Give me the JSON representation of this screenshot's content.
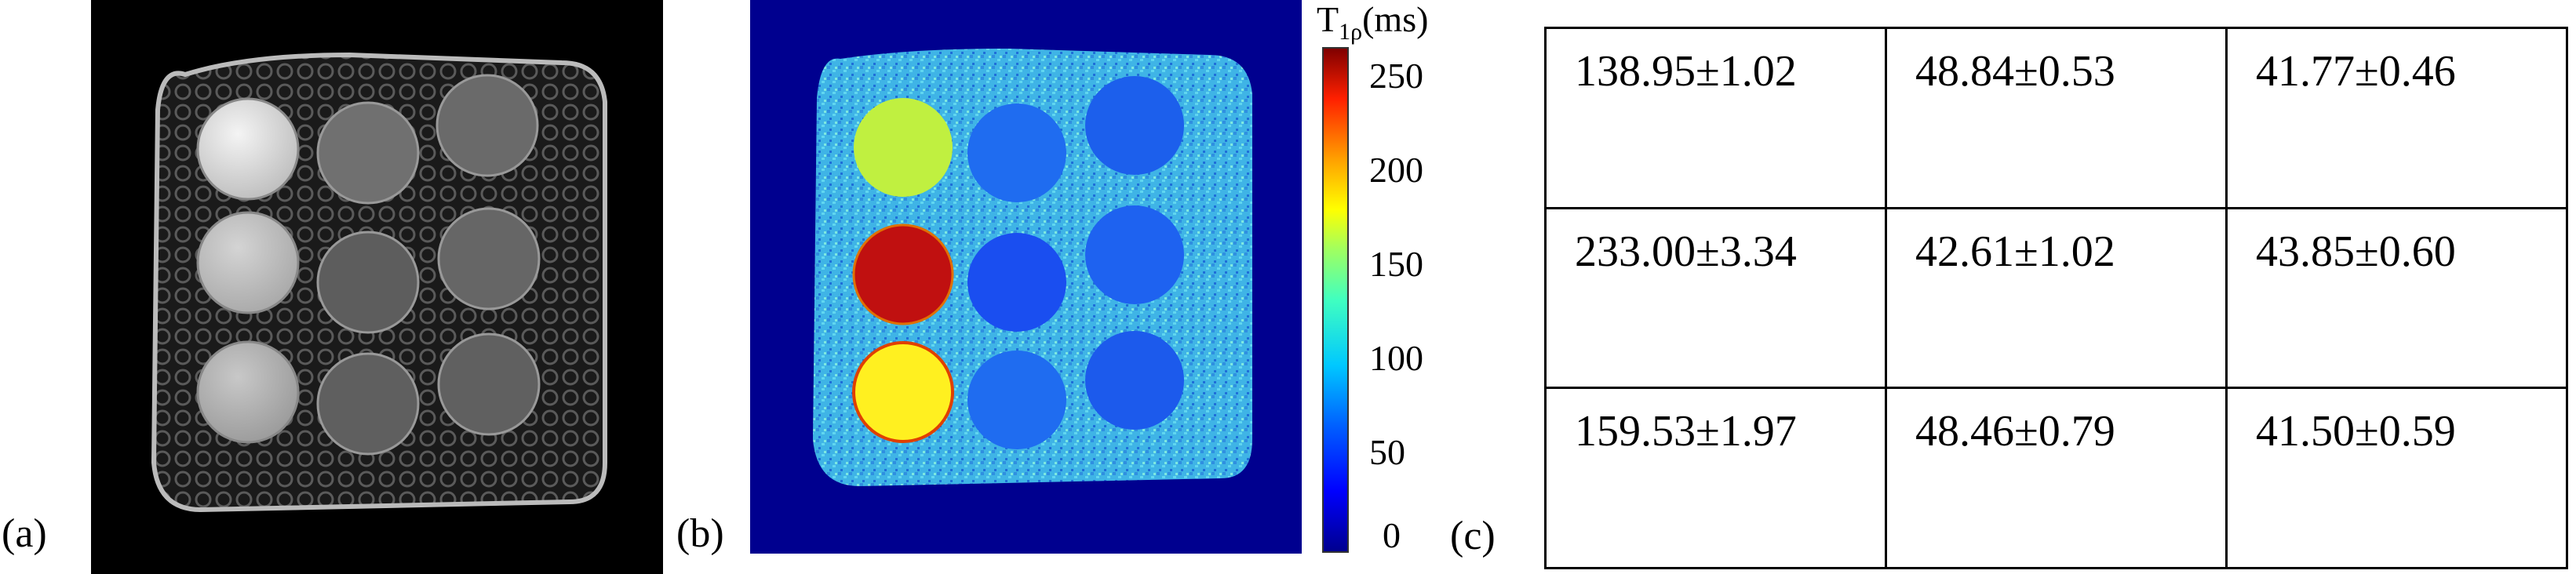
{
  "figure": {
    "panel_labels": {
      "a": "(a)",
      "b": "(b)",
      "c": "(c)"
    },
    "colorbar": {
      "title_main": "T",
      "title_sub": "1ρ",
      "title_unit": "(ms)",
      "ticks": [
        "250",
        "200",
        "150",
        "100",
        "50",
        "0"
      ],
      "colormap": "jet",
      "range": [
        0,
        260
      ]
    },
    "map_icon": "phantom-t1rho-map",
    "anatomy_icon": "phantom-mri-image",
    "table": {
      "rows": [
        [
          "138.95±1.02",
          "48.84±0.53",
          "41.77±0.46"
        ],
        [
          "233.00±3.34",
          "42.61±1.02",
          "43.85±0.60"
        ],
        [
          "159.53±1.97",
          "48.46±0.79",
          "41.50±0.59"
        ]
      ]
    },
    "colors": {
      "background_map": "#00008f",
      "phantom_bg_map": "#3fb4e6",
      "phantom_bg_anatomy": "#1a1a1a"
    }
  }
}
